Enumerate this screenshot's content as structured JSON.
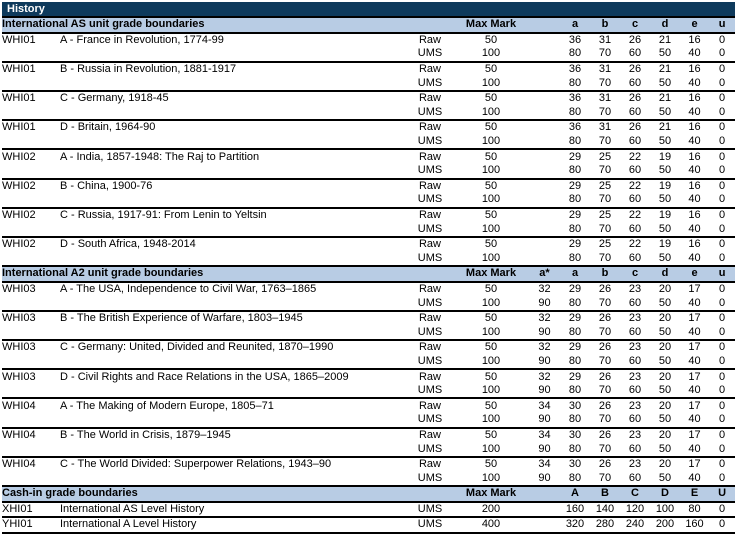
{
  "page_title": "History",
  "colors": {
    "title_bar_bg": "#0e3a5c",
    "title_bar_text": "#ffffff",
    "section_header_bg": "#b8cce4",
    "grade_letter_text": "#17365d",
    "body_text": "#000000",
    "border": "#000000",
    "background": "#ffffff"
  },
  "sections": [
    {
      "header": "International AS unit grade boundaries",
      "max_mark_label": "Max Mark",
      "grade_letters": [
        "a",
        "b",
        "c",
        "d",
        "e",
        "u"
      ],
      "units": [
        {
          "code": "WHI01",
          "title": "A - France in Revolution, 1774-99",
          "rows": [
            {
              "type": "Raw",
              "max": "50",
              "grades": [
                "36",
                "31",
                "26",
                "21",
                "16",
                "0"
              ]
            },
            {
              "type": "UMS",
              "max": "100",
              "grades": [
                "80",
                "70",
                "60",
                "50",
                "40",
                "0"
              ]
            }
          ]
        },
        {
          "code": "WHI01",
          "title": "B - Russia in Revolution, 1881-1917",
          "rows": [
            {
              "type": "Raw",
              "max": "50",
              "grades": [
                "36",
                "31",
                "26",
                "21",
                "16",
                "0"
              ]
            },
            {
              "type": "UMS",
              "max": "100",
              "grades": [
                "80",
                "70",
                "60",
                "50",
                "40",
                "0"
              ]
            }
          ]
        },
        {
          "code": "WHI01",
          "title": "C - Germany, 1918-45",
          "rows": [
            {
              "type": "Raw",
              "max": "50",
              "grades": [
                "36",
                "31",
                "26",
                "21",
                "16",
                "0"
              ]
            },
            {
              "type": "UMS",
              "max": "100",
              "grades": [
                "80",
                "70",
                "60",
                "50",
                "40",
                "0"
              ]
            }
          ]
        },
        {
          "code": "WHI01",
          "title": "D - Britain, 1964-90",
          "rows": [
            {
              "type": "Raw",
              "max": "50",
              "grades": [
                "36",
                "31",
                "26",
                "21",
                "16",
                "0"
              ]
            },
            {
              "type": "UMS",
              "max": "100",
              "grades": [
                "80",
                "70",
                "60",
                "50",
                "40",
                "0"
              ]
            }
          ]
        },
        {
          "code": "WHI02",
          "title": "A - India, 1857-1948: The Raj to Partition",
          "rows": [
            {
              "type": "Raw",
              "max": "50",
              "grades": [
                "29",
                "25",
                "22",
                "19",
                "16",
                "0"
              ]
            },
            {
              "type": "UMS",
              "max": "100",
              "grades": [
                "80",
                "70",
                "60",
                "50",
                "40",
                "0"
              ]
            }
          ]
        },
        {
          "code": "WHI02",
          "title": "B - China, 1900-76",
          "rows": [
            {
              "type": "Raw",
              "max": "50",
              "grades": [
                "29",
                "25",
                "22",
                "19",
                "16",
                "0"
              ]
            },
            {
              "type": "UMS",
              "max": "100",
              "grades": [
                "80",
                "70",
                "60",
                "50",
                "40",
                "0"
              ]
            }
          ]
        },
        {
          "code": "WHI02",
          "title": "C - Russia, 1917-91: From Lenin to Yeltsin",
          "rows": [
            {
              "type": "Raw",
              "max": "50",
              "grades": [
                "29",
                "25",
                "22",
                "19",
                "16",
                "0"
              ]
            },
            {
              "type": "UMS",
              "max": "100",
              "grades": [
                "80",
                "70",
                "60",
                "50",
                "40",
                "0"
              ]
            }
          ]
        },
        {
          "code": "WHI02",
          "title": "D - South Africa, 1948-2014",
          "rows": [
            {
              "type": "Raw",
              "max": "50",
              "grades": [
                "29",
                "25",
                "22",
                "19",
                "16",
                "0"
              ]
            },
            {
              "type": "UMS",
              "max": "100",
              "grades": [
                "80",
                "70",
                "60",
                "50",
                "40",
                "0"
              ]
            }
          ]
        }
      ]
    },
    {
      "header": "International A2 unit grade boundaries",
      "max_mark_label": "Max Mark",
      "grade_letters": [
        "a*",
        "a",
        "b",
        "c",
        "d",
        "e",
        "u"
      ],
      "units": [
        {
          "code": "WHI03",
          "title": "A - The USA, Independence to Civil War, 1763–1865",
          "rows": [
            {
              "type": "Raw",
              "max": "50",
              "grades": [
                "32",
                "29",
                "26",
                "23",
                "20",
                "17",
                "0"
              ]
            },
            {
              "type": "UMS",
              "max": "100",
              "grades": [
                "90",
                "80",
                "70",
                "60",
                "50",
                "40",
                "0"
              ]
            }
          ]
        },
        {
          "code": "WHI03",
          "title": "B - The British Experience of Warfare, 1803–1945",
          "rows": [
            {
              "type": "Raw",
              "max": "50",
              "grades": [
                "32",
                "29",
                "26",
                "23",
                "20",
                "17",
                "0"
              ]
            },
            {
              "type": "UMS",
              "max": "100",
              "grades": [
                "90",
                "80",
                "70",
                "60",
                "50",
                "40",
                "0"
              ]
            }
          ]
        },
        {
          "code": "WHI03",
          "title": "C - Germany: United, Divided and Reunited, 1870–1990",
          "rows": [
            {
              "type": "Raw",
              "max": "50",
              "grades": [
                "32",
                "29",
                "26",
                "23",
                "20",
                "17",
                "0"
              ]
            },
            {
              "type": "UMS",
              "max": "100",
              "grades": [
                "90",
                "80",
                "70",
                "60",
                "50",
                "40",
                "0"
              ]
            }
          ]
        },
        {
          "code": "WHI03",
          "title": "D - Civil Rights and Race Relations in the USA, 1865–2009",
          "rows": [
            {
              "type": "Raw",
              "max": "50",
              "grades": [
                "32",
                "29",
                "26",
                "23",
                "20",
                "17",
                "0"
              ]
            },
            {
              "type": "UMS",
              "max": "100",
              "grades": [
                "90",
                "80",
                "70",
                "60",
                "50",
                "40",
                "0"
              ]
            }
          ]
        },
        {
          "code": "WHI04",
          "title": "A - The Making of Modern Europe, 1805–71",
          "rows": [
            {
              "type": "Raw",
              "max": "50",
              "grades": [
                "34",
                "30",
                "26",
                "23",
                "20",
                "17",
                "0"
              ]
            },
            {
              "type": "UMS",
              "max": "100",
              "grades": [
                "90",
                "80",
                "70",
                "60",
                "50",
                "40",
                "0"
              ]
            }
          ]
        },
        {
          "code": "WHI04",
          "title": "B - The World in Crisis, 1879–1945",
          "rows": [
            {
              "type": "Raw",
              "max": "50",
              "grades": [
                "34",
                "30",
                "26",
                "23",
                "20",
                "17",
                "0"
              ]
            },
            {
              "type": "UMS",
              "max": "100",
              "grades": [
                "90",
                "80",
                "70",
                "60",
                "50",
                "40",
                "0"
              ]
            }
          ]
        },
        {
          "code": "WHI04",
          "title": "C - The World Divided: Superpower Relations, 1943–90",
          "rows": [
            {
              "type": "Raw",
              "max": "50",
              "grades": [
                "34",
                "30",
                "26",
                "23",
                "20",
                "17",
                "0"
              ]
            },
            {
              "type": "UMS",
              "max": "100",
              "grades": [
                "90",
                "80",
                "70",
                "60",
                "50",
                "40",
                "0"
              ]
            }
          ]
        }
      ]
    },
    {
      "header": "Cash-in grade boundaries",
      "max_mark_label": "Max Mark",
      "grade_letters": [
        "A",
        "B",
        "C",
        "D",
        "E",
        "U"
      ],
      "units": [
        {
          "code": "XHI01",
          "title": "International AS Level History",
          "rows": [
            {
              "type": "UMS",
              "max": "200",
              "grades": [
                "160",
                "140",
                "120",
                "100",
                "80",
                "0"
              ]
            }
          ]
        },
        {
          "code": "YHI01",
          "title": "International A Level History",
          "rows": [
            {
              "type": "UMS",
              "max": "400",
              "grades": [
                "320",
                "280",
                "240",
                "200",
                "160",
                "0"
              ]
            }
          ]
        }
      ]
    }
  ]
}
